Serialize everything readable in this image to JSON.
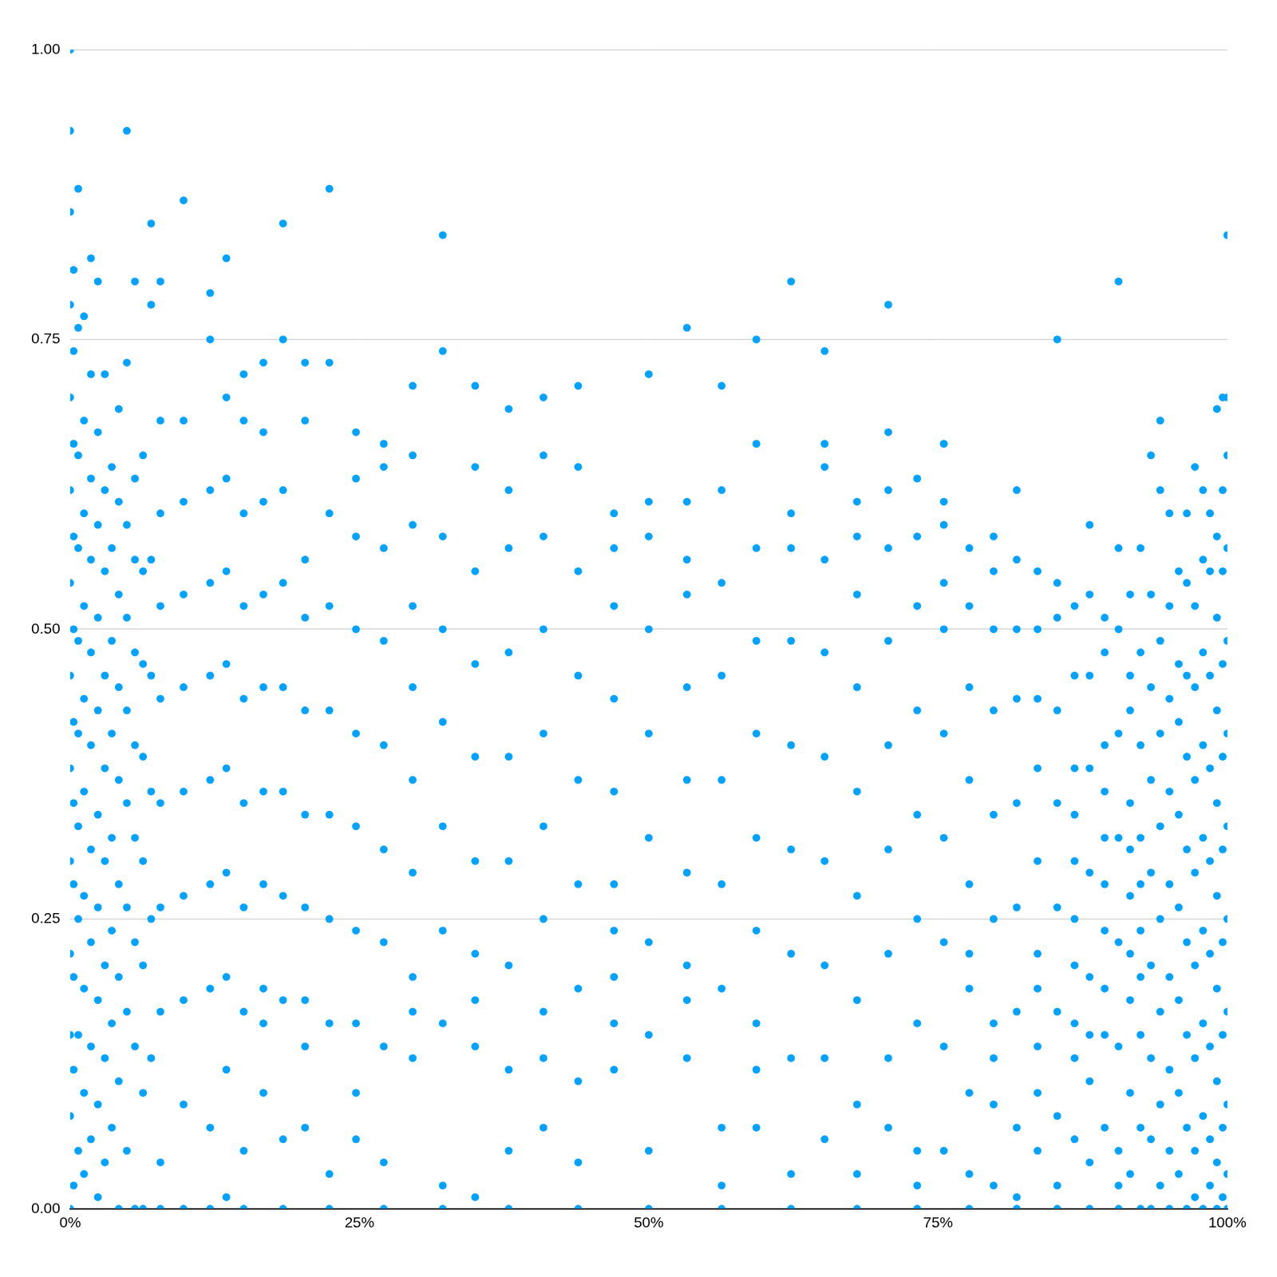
{
  "chart_data": {
    "type": "scatter",
    "color": "#00a2ff",
    "marker": "circle",
    "grid": "y",
    "xlim": [
      0,
      100
    ],
    "xticks": [
      {
        "value": 0,
        "label": "0%"
      },
      {
        "value": 25,
        "label": "25%"
      },
      {
        "value": 50,
        "label": "50%"
      },
      {
        "value": 75,
        "label": "75%"
      },
      {
        "value": 100,
        "label": "100%"
      }
    ],
    "ylim": [
      0,
      1
    ],
    "yticks": [
      {
        "value": 0,
        "label": "0.00"
      },
      {
        "value": 0.25,
        "label": "0.25"
      },
      {
        "value": 0.5,
        "label": "0.50"
      },
      {
        "value": 0.75,
        "label": "0.75"
      },
      {
        "value": 1,
        "label": "1.00"
      }
    ],
    "x": [
      0,
      0,
      0,
      0,
      0,
      0,
      0,
      0,
      0,
      0,
      0,
      0,
      0,
      0,
      0.3,
      0.3,
      0.3,
      0.3,
      0.3,
      0.3,
      0.3,
      0.3,
      0.3,
      0.3,
      0.3,
      0.7,
      0.7,
      0.7,
      0.7,
      0.7,
      0.7,
      0.7,
      0.7,
      0.7,
      0.7,
      1.2,
      1.2,
      1.2,
      1.2,
      1.2,
      1.2,
      1.2,
      1.2,
      1.2,
      1.2,
      1.8,
      1.8,
      1.8,
      1.8,
      1.8,
      1.8,
      1.8,
      1.8,
      1.8,
      1.8,
      2.4,
      2.4,
      2.4,
      2.4,
      2.4,
      2.4,
      2.4,
      2.4,
      2.4,
      2.4,
      3.0,
      3.0,
      3.0,
      3.0,
      3.0,
      3.0,
      3.0,
      3.0,
      3.0,
      3.6,
      3.6,
      3.6,
      3.6,
      3.6,
      3.6,
      3.6,
      3.6,
      4.2,
      4.2,
      4.2,
      4.2,
      4.2,
      4.2,
      4.2,
      4.2,
      4.2,
      4.9,
      4.9,
      4.9,
      4.9,
      4.9,
      4.9,
      4.9,
      4.9,
      4.9,
      5.6,
      5.6,
      5.6,
      5.6,
      5.6,
      5.6,
      5.6,
      5.6,
      5.6,
      6.3,
      6.3,
      6.3,
      6.3,
      6.3,
      6.3,
      6.3,
      6.3,
      7.0,
      7.0,
      7.0,
      7.0,
      7.0,
      7.0,
      7.0,
      7.8,
      7.8,
      7.8,
      7.8,
      7.8,
      7.8,
      7.8,
      7.8,
      7.8,
      7.8,
      9.8,
      9.8,
      9.8,
      9.8,
      9.8,
      9.8,
      9.8,
      9.8,
      9.8,
      9.8,
      12.1,
      12.1,
      12.1,
      12.1,
      12.1,
      12.1,
      12.1,
      12.1,
      12.1,
      12.1,
      13.5,
      13.5,
      13.5,
      13.5,
      13.5,
      13.5,
      13.5,
      13.5,
      13.5,
      13.5,
      15.0,
      15.0,
      15.0,
      15.0,
      15.0,
      15.0,
      15.0,
      15.0,
      15.0,
      15.0,
      16.7,
      16.7,
      16.7,
      16.7,
      16.7,
      16.7,
      16.7,
      16.7,
      16.7,
      16.7,
      18.4,
      18.4,
      18.4,
      18.4,
      18.4,
      18.4,
      18.4,
      18.4,
      18.4,
      18.4,
      20.3,
      20.3,
      20.3,
      20.3,
      20.3,
      20.3,
      20.3,
      20.3,
      20.3,
      20.3,
      22.4,
      22.4,
      22.4,
      22.4,
      22.4,
      22.4,
      22.4,
      22.4,
      22.4,
      22.4,
      24.7,
      24.7,
      24.7,
      24.7,
      24.7,
      24.7,
      24.7,
      24.7,
      24.7,
      24.7,
      27.1,
      27.1,
      27.1,
      27.1,
      27.1,
      27.1,
      27.1,
      27.1,
      27.1,
      27.1,
      29.6,
      29.6,
      29.6,
      29.6,
      29.6,
      29.6,
      29.6,
      29.6,
      29.6,
      29.6,
      32.2,
      32.2,
      32.2,
      32.2,
      32.2,
      32.2,
      32.2,
      32.2,
      32.2,
      32.2,
      35.0,
      35.0,
      35.0,
      35.0,
      35.0,
      35.0,
      35.0,
      35.0,
      35.0,
      35.0,
      37.9,
      37.9,
      37.9,
      37.9,
      37.9,
      37.9,
      37.9,
      37.9,
      37.9,
      37.9,
      40.9,
      40.9,
      40.9,
      40.9,
      40.9,
      40.9,
      40.9,
      40.9,
      40.9,
      40.9,
      43.9,
      43.9,
      43.9,
      43.9,
      43.9,
      43.9,
      43.9,
      43.9,
      43.9,
      43.9,
      47.0,
      47.0,
      47.0,
      47.0,
      47.0,
      47.0,
      47.0,
      47.0,
      47.0,
      47.0,
      50.0,
      50.0,
      50.0,
      50.0,
      50.0,
      50.0,
      50.0,
      50.0,
      50.0,
      50.0,
      53.3,
      53.3,
      53.3,
      53.3,
      53.3,
      53.3,
      53.3,
      53.3,
      53.3,
      53.3,
      56.3,
      56.3,
      56.3,
      56.3,
      56.3,
      56.3,
      56.3,
      56.3,
      56.3,
      56.3,
      59.3,
      59.3,
      59.3,
      59.3,
      59.3,
      59.3,
      59.3,
      59.3,
      59.3,
      59.3,
      62.3,
      62.3,
      62.3,
      62.3,
      62.3,
      62.3,
      62.3,
      62.3,
      62.3,
      62.3,
      65.2,
      65.2,
      65.2,
      65.2,
      65.2,
      65.2,
      65.2,
      65.2,
      65.2,
      65.2,
      68.0,
      68.0,
      68.0,
      68.0,
      68.0,
      68.0,
      68.0,
      68.0,
      68.0,
      68.0,
      70.7,
      70.7,
      70.7,
      70.7,
      70.7,
      70.7,
      70.7,
      70.7,
      70.7,
      70.7,
      73.2,
      73.2,
      73.2,
      73.2,
      73.2,
      73.2,
      73.2,
      73.2,
      73.2,
      73.2,
      75.5,
      75.5,
      75.5,
      75.5,
      75.5,
      75.5,
      75.5,
      75.5,
      75.5,
      75.5,
      77.7,
      77.7,
      77.7,
      77.7,
      77.7,
      77.7,
      77.7,
      77.7,
      77.7,
      77.7,
      79.8,
      79.8,
      79.8,
      79.8,
      79.8,
      79.8,
      79.8,
      79.8,
      79.8,
      79.8,
      81.8,
      81.8,
      81.8,
      81.8,
      81.8,
      81.8,
      81.8,
      81.8,
      81.8,
      81.8,
      83.6,
      83.6,
      83.6,
      83.6,
      83.6,
      83.6,
      83.6,
      83.6,
      83.6,
      83.6,
      85.3,
      85.3,
      85.3,
      85.3,
      85.3,
      85.3,
      85.3,
      85.3,
      85.3,
      85.3,
      86.8,
      86.8,
      86.8,
      86.8,
      86.8,
      86.8,
      86.8,
      86.8,
      86.8,
      86.8,
      88.1,
      88.1,
      88.1,
      88.1,
      88.1,
      88.1,
      88.1,
      88.1,
      88.1,
      88.1,
      89.4,
      89.4,
      89.4,
      89.4,
      89.4,
      89.4,
      89.4,
      89.4,
      89.4,
      89.4,
      90.6,
      90.6,
      90.6,
      90.6,
      90.6,
      90.6,
      90.6,
      90.6,
      90.6,
      90.6,
      91.6,
      91.6,
      91.6,
      91.6,
      91.6,
      91.6,
      91.6,
      91.6,
      91.6,
      91.6,
      92.5,
      92.5,
      92.5,
      92.5,
      92.5,
      92.5,
      92.5,
      92.5,
      92.5,
      92.5,
      93.4,
      93.4,
      93.4,
      93.4,
      93.4,
      93.4,
      93.4,
      93.4,
      93.4,
      94.2,
      94.2,
      94.2,
      94.2,
      94.2,
      94.2,
      94.2,
      94.2,
      94.2,
      95.0,
      95.0,
      95.0,
      95.0,
      95.0,
      95.0,
      95.0,
      95.0,
      95.0,
      95.8,
      95.8,
      95.8,
      95.8,
      95.8,
      95.8,
      95.8,
      95.8,
      96.5,
      96.5,
      96.5,
      96.5,
      96.5,
      96.5,
      96.5,
      96.5,
      96.5,
      97.2,
      97.2,
      97.2,
      97.2,
      97.2,
      97.2,
      97.2,
      97.2,
      97.2,
      97.9,
      97.9,
      97.9,
      97.9,
      97.9,
      97.9,
      97.9,
      97.9,
      97.9,
      98.5,
      98.5,
      98.5,
      98.5,
      98.5,
      98.5,
      98.5,
      98.5,
      98.5,
      99.1,
      99.1,
      99.1,
      99.1,
      99.1,
      99.1,
      99.1,
      99.1,
      99.1,
      99.1,
      99.6,
      99.6,
      99.6,
      99.6,
      99.6,
      99.6,
      99.6,
      99.6,
      99.6,
      99.6,
      100,
      100,
      100,
      100,
      100,
      100,
      100,
      100,
      100,
      100,
      100,
      100
    ],
    "values": [
      0,
      0.08,
      0.15,
      0.22,
      0.3,
      0.38,
      0.46,
      0.54,
      0.62,
      0.7,
      0.78,
      0.86,
      0.93,
      1.0,
      0.02,
      0.12,
      0.2,
      0.28,
      0.35,
      0.42,
      0.5,
      0.58,
      0.66,
      0.74,
      0.81,
      0.05,
      0.15,
      0.25,
      0.33,
      0.41,
      0.49,
      0.57,
      0.65,
      0.76,
      0.88,
      0.03,
      0.1,
      0.19,
      0.27,
      0.36,
      0.44,
      0.52,
      0.6,
      0.68,
      0.77,
      0.06,
      0.14,
      0.23,
      0.31,
      0.4,
      0.48,
      0.56,
      0.63,
      0.72,
      0.82,
      0.01,
      0.09,
      0.18,
      0.26,
      0.34,
      0.43,
      0.51,
      0.59,
      0.67,
      0.8,
      0.04,
      0.13,
      0.21,
      0.3,
      0.38,
      0.46,
      0.55,
      0.62,
      0.72,
      0.07,
      0.16,
      0.24,
      0.32,
      0.41,
      0.49,
      0.57,
      0.64,
      0.0,
      0.11,
      0.2,
      0.28,
      0.37,
      0.45,
      0.53,
      0.61,
      0.69,
      0.05,
      0.17,
      0.26,
      0.35,
      0.43,
      0.51,
      0.59,
      0.73,
      0.93,
      0.0,
      0.14,
      0.23,
      0.32,
      0.4,
      0.48,
      0.56,
      0.63,
      0.8,
      0.0,
      0.1,
      0.21,
      0.3,
      0.39,
      0.47,
      0.55,
      0.65,
      0.13,
      0.25,
      0.36,
      0.46,
      0.56,
      0.78,
      0.85,
      0.0,
      0.04,
      0.17,
      0.26,
      0.35,
      0.44,
      0.52,
      0.6,
      0.68,
      0.8,
      0.0,
      0.09,
      0.18,
      0.27,
      0.36,
      0.45,
      0.53,
      0.61,
      0.68,
      0.87,
      0.0,
      0.07,
      0.19,
      0.28,
      0.37,
      0.46,
      0.54,
      0.62,
      0.75,
      0.79,
      0.01,
      0.12,
      0.2,
      0.29,
      0.38,
      0.47,
      0.55,
      0.63,
      0.7,
      0.82,
      0.0,
      0.05,
      0.17,
      0.26,
      0.35,
      0.44,
      0.52,
      0.6,
      0.68,
      0.72,
      0.1,
      0.19,
      0.28,
      0.36,
      0.45,
      0.53,
      0.61,
      0.67,
      0.73,
      0.16,
      0.0,
      0.06,
      0.18,
      0.27,
      0.36,
      0.45,
      0.54,
      0.62,
      0.75,
      0.85,
      0.07,
      0.18,
      0.26,
      0.34,
      0.43,
      0.51,
      0.56,
      0.68,
      0.73,
      0.14,
      0.0,
      0.03,
      0.16,
      0.25,
      0.34,
      0.43,
      0.52,
      0.6,
      0.73,
      0.88,
      0.06,
      0.16,
      0.24,
      0.33,
      0.41,
      0.5,
      0.58,
      0.63,
      0.67,
      0.1,
      0.0,
      0.04,
      0.14,
      0.23,
      0.31,
      0.4,
      0.49,
      0.57,
      0.64,
      0.66,
      0.13,
      0.2,
      0.29,
      0.37,
      0.45,
      0.52,
      0.59,
      0.65,
      0.71,
      0.17,
      0.0,
      0.02,
      0.16,
      0.24,
      0.33,
      0.42,
      0.5,
      0.58,
      0.74,
      0.84,
      0.01,
      0.14,
      0.22,
      0.3,
      0.39,
      0.47,
      0.55,
      0.64,
      0.71,
      0.18,
      0.0,
      0.05,
      0.12,
      0.21,
      0.3,
      0.39,
      0.48,
      0.57,
      0.62,
      0.69,
      0.07,
      0.17,
      0.25,
      0.33,
      0.41,
      0.5,
      0.58,
      0.65,
      0.7,
      0.13,
      0.0,
      0.04,
      0.11,
      0.19,
      0.28,
      0.37,
      0.46,
      0.55,
      0.64,
      0.71,
      0.12,
      0.2,
      0.28,
      0.36,
      0.44,
      0.52,
      0.57,
      0.6,
      0.16,
      0.24,
      0.0,
      0.05,
      0.15,
      0.23,
      0.32,
      0.41,
      0.5,
      0.58,
      0.61,
      0.72,
      0.13,
      0.21,
      0.29,
      0.37,
      0.45,
      0.53,
      0.56,
      0.61,
      0.76,
      0.18,
      0.0,
      0.02,
      0.07,
      0.19,
      0.28,
      0.37,
      0.46,
      0.54,
      0.62,
      0.71,
      0.07,
      0.16,
      0.24,
      0.32,
      0.41,
      0.49,
      0.57,
      0.66,
      0.75,
      0.12,
      0.0,
      0.03,
      0.13,
      0.22,
      0.31,
      0.4,
      0.49,
      0.57,
      0.6,
      0.8,
      0.06,
      0.13,
      0.21,
      0.3,
      0.39,
      0.48,
      0.56,
      0.64,
      0.66,
      0.74,
      0.0,
      0.03,
      0.09,
      0.18,
      0.27,
      0.36,
      0.45,
      0.53,
      0.58,
      0.61,
      0.07,
      0.13,
      0.22,
      0.31,
      0.4,
      0.49,
      0.57,
      0.62,
      0.67,
      0.78,
      0.0,
      0.02,
      0.05,
      0.16,
      0.25,
      0.34,
      0.43,
      0.52,
      0.58,
      0.63,
      0.05,
      0.14,
      0.23,
      0.32,
      0.41,
      0.5,
      0.54,
      0.59,
      0.61,
      0.66,
      0.0,
      0.03,
      0.1,
      0.19,
      0.28,
      0.37,
      0.45,
      0.52,
      0.57,
      0.22,
      0.02,
      0.09,
      0.16,
      0.25,
      0.34,
      0.43,
      0.5,
      0.55,
      0.58,
      0.13,
      0.0,
      0.01,
      0.07,
      0.17,
      0.26,
      0.35,
      0.44,
      0.5,
      0.56,
      0.62,
      0.05,
      0.14,
      0.22,
      0.3,
      0.38,
      0.44,
      0.5,
      0.55,
      0.19,
      0.1,
      0.0,
      0.02,
      0.08,
      0.17,
      0.26,
      0.35,
      0.43,
      0.51,
      0.54,
      0.75,
      0.06,
      0.13,
      0.21,
      0.3,
      0.38,
      0.46,
      0.52,
      0.16,
      0.25,
      0.34,
      0.0,
      0.04,
      0.11,
      0.2,
      0.29,
      0.38,
      0.46,
      0.53,
      0.59,
      0.15,
      0.07,
      0.15,
      0.24,
      0.32,
      0.4,
      0.48,
      0.51,
      0.19,
      0.28,
      0.36,
      0.0,
      0.02,
      0.05,
      0.14,
      0.23,
      0.32,
      0.41,
      0.5,
      0.57,
      0.8,
      0.03,
      0.1,
      0.18,
      0.27,
      0.35,
      0.43,
      0.46,
      0.53,
      0.22,
      0.31,
      0.0,
      0.07,
      0.15,
      0.24,
      0.32,
      0.4,
      0.48,
      0.57,
      0.2,
      0.28,
      0.0,
      0.06,
      0.13,
      0.21,
      0.29,
      0.37,
      0.45,
      0.53,
      0.65,
      0.02,
      0.09,
      0.17,
      0.25,
      0.33,
      0.41,
      0.49,
      0.62,
      0.68,
      0.0,
      0.05,
      0.12,
      0.2,
      0.28,
      0.36,
      0.44,
      0.52,
      0.6,
      0.03,
      0.1,
      0.18,
      0.26,
      0.34,
      0.42,
      0.47,
      0.55,
      0.0,
      0.07,
      0.15,
      0.23,
      0.31,
      0.39,
      0.46,
      0.54,
      0.6,
      0.01,
      0.05,
      0.13,
      0.21,
      0.29,
      0.37,
      0.45,
      0.52,
      0.64,
      0.0,
      0.08,
      0.16,
      0.24,
      0.32,
      0.4,
      0.48,
      0.56,
      0.62,
      0.02,
      0.06,
      0.14,
      0.22,
      0.3,
      0.38,
      0.46,
      0.55,
      0.6,
      0.0,
      0.04,
      0.11,
      0.19,
      0.27,
      0.35,
      0.43,
      0.51,
      0.58,
      0.69,
      0.01,
      0.07,
      0.15,
      0.23,
      0.31,
      0.39,
      0.47,
      0.55,
      0.62,
      0.7,
      0.0,
      0.03,
      0.09,
      0.17,
      0.25,
      0.33,
      0.41,
      0.49,
      0.57,
      0.65,
      0.7,
      0.84
    ]
  }
}
